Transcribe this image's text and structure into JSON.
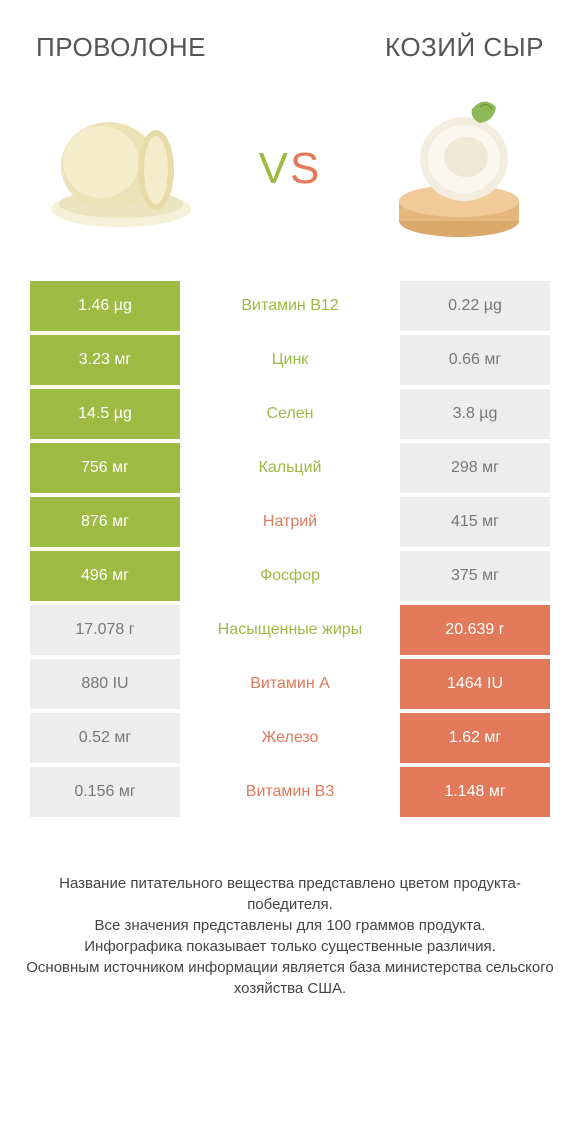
{
  "header": {
    "title_left": "ПРОВОЛОНЕ",
    "title_right": "КОЗИЙ СЫР",
    "vs_v": "V",
    "vs_s": "S"
  },
  "colors": {
    "left": "#9dba42",
    "right": "#e2795a",
    "grey": "#ededed",
    "grey_text": "#777777"
  },
  "rows": [
    {
      "left": "1.46 µg",
      "mid": "Витамин B12",
      "right": "0.22 µg",
      "left_win": true,
      "right_win": false,
      "mid_color": "left"
    },
    {
      "left": "3.23 мг",
      "mid": "Цинк",
      "right": "0.66 мг",
      "left_win": true,
      "right_win": false,
      "mid_color": "left"
    },
    {
      "left": "14.5 µg",
      "mid": "Селен",
      "right": "3.8 µg",
      "left_win": true,
      "right_win": false,
      "mid_color": "left"
    },
    {
      "left": "756 мг",
      "mid": "Кальций",
      "right": "298 мг",
      "left_win": true,
      "right_win": false,
      "mid_color": "left"
    },
    {
      "left": "876 мг",
      "mid": "Натрий",
      "right": "415 мг",
      "left_win": true,
      "right_win": false,
      "mid_color": "right"
    },
    {
      "left": "496 мг",
      "mid": "Фосфор",
      "right": "375 мг",
      "left_win": true,
      "right_win": false,
      "mid_color": "left"
    },
    {
      "left": "17.078 г",
      "mid": "Насыщенные жиры",
      "right": "20.639 г",
      "left_win": false,
      "right_win": true,
      "mid_color": "left"
    },
    {
      "left": "880 IU",
      "mid": "Витамин A",
      "right": "1464 IU",
      "left_win": false,
      "right_win": true,
      "mid_color": "right"
    },
    {
      "left": "0.52 мг",
      "mid": "Железо",
      "right": "1.62 мг",
      "left_win": false,
      "right_win": true,
      "mid_color": "right"
    },
    {
      "left": "0.156 мг",
      "mid": "Витамин B3",
      "right": "1.148 мг",
      "left_win": false,
      "right_win": true,
      "mid_color": "right"
    }
  ],
  "footer": {
    "line1": "Название питательного вещества представлено цветом продукта-победителя.",
    "line2": "Все значения представлены для 100 граммов продукта.",
    "line3": "Инфографика показывает только существенные различия.",
    "line4": "Основным источником информации является база министерства сельского хозяйства США."
  }
}
